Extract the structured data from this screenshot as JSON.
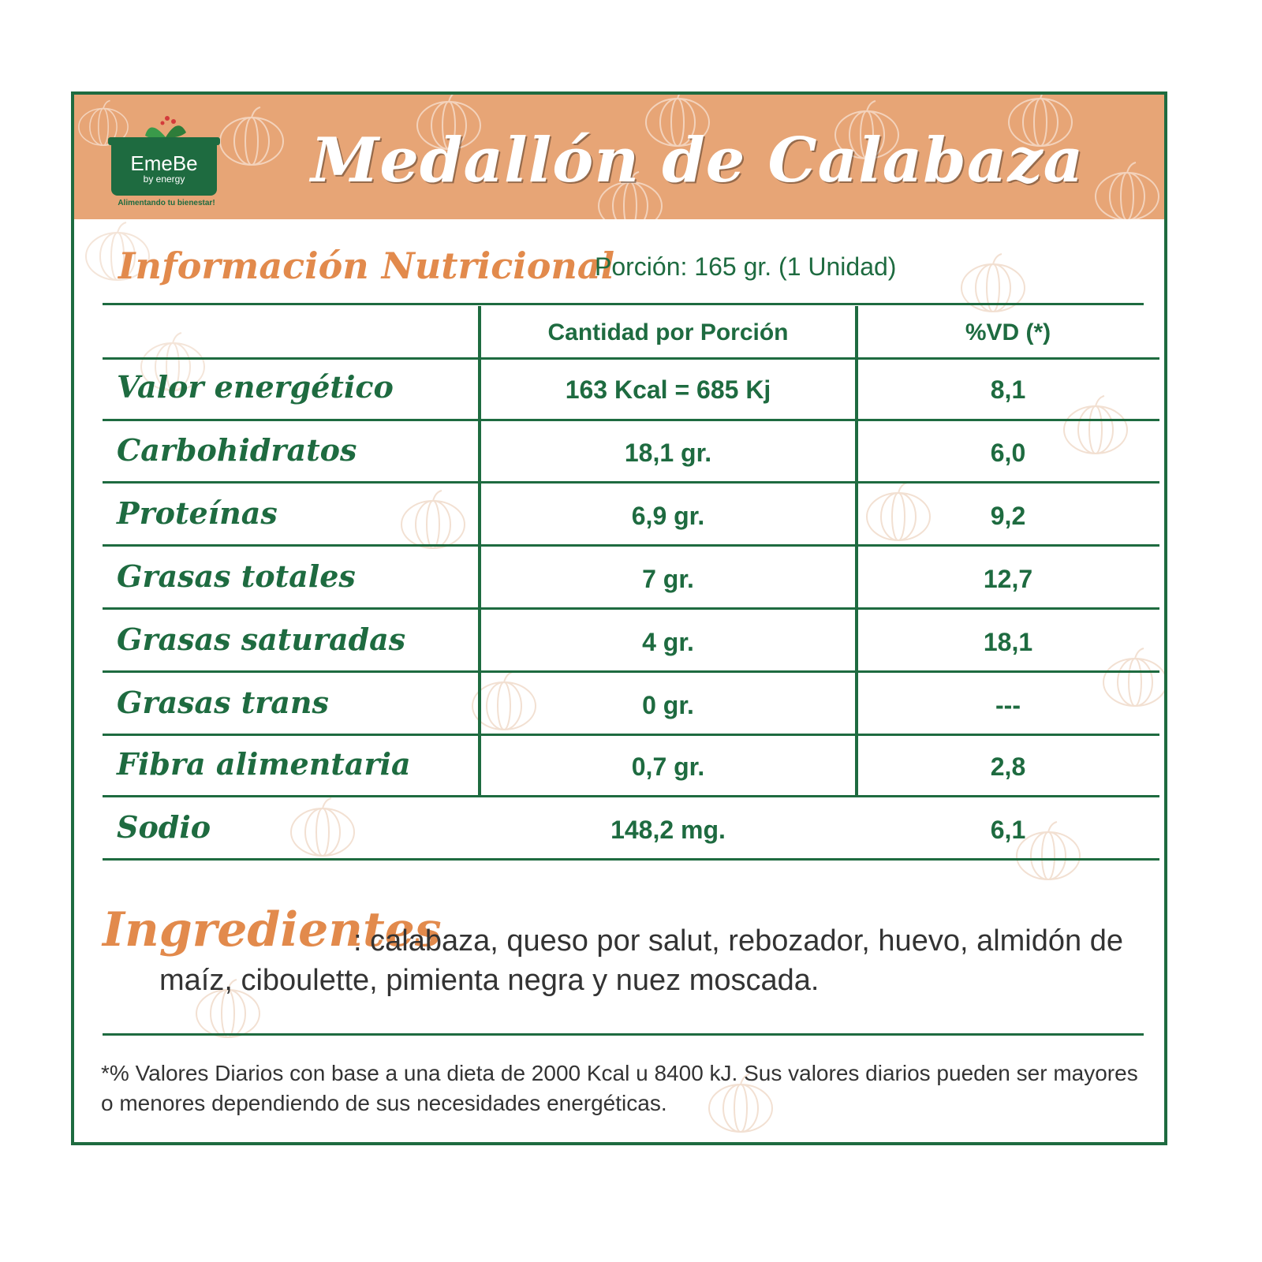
{
  "brand": {
    "name": "EmeBe",
    "sub": "by energy",
    "tagline": "Alimentando tu bienestar!"
  },
  "title": "Medallón de Calabaza",
  "subtitle": "Información Nutricional",
  "portion": "Porción: 165 gr. (1 Unidad)",
  "table": {
    "headers": [
      "Cantidad por Porción",
      "%VD (*)"
    ],
    "rows": [
      {
        "label": "Valor energético",
        "amount": "163 Kcal = 685 Kj",
        "vd": "8,1"
      },
      {
        "label": "Carbohidratos",
        "amount": "18,1 gr.",
        "vd": "6,0"
      },
      {
        "label": "Proteínas",
        "amount": "6,9 gr.",
        "vd": "9,2"
      },
      {
        "label": "Grasas totales",
        "amount": "7 gr.",
        "vd": "12,7"
      },
      {
        "label": "Grasas saturadas",
        "amount": "4 gr.",
        "vd": "18,1"
      },
      {
        "label": "Grasas trans",
        "amount": "0 gr.",
        "vd": "---"
      },
      {
        "label": "Fibra alimentaria",
        "amount": "0,7 gr.",
        "vd": "2,8"
      },
      {
        "label": "Sodio",
        "amount": "148,2 mg.",
        "vd": "6,1"
      }
    ]
  },
  "ingredients": {
    "title": "Ingredientes",
    "text": ": calabaza, queso por salut, rebozador, huevo, almidón de maíz, ciboulette, pimienta negra y nuez moscada."
  },
  "footnote": "*% Valores Diarios con base a una dieta de 2000 Kcal u 8400 kJ. Sus valores diarios pueden ser mayores o menores dependiendo de sus necesidades energéticas.",
  "colors": {
    "green": "#1e6b40",
    "orange": "#e28a4c",
    "header_bg": "#e7a576"
  },
  "decor": {
    "icon": "pumpkin-icon"
  }
}
